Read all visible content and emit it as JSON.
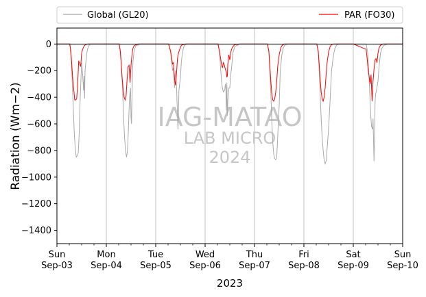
{
  "chart_data": {
    "type": "line",
    "ylabel": "Radiation (Wm−2)",
    "xlabel": "2023",
    "ylim": [
      -1500,
      120
    ],
    "xlim": [
      0,
      7
    ],
    "yticks": [
      0,
      -200,
      -400,
      -600,
      -800,
      -1000,
      -1200,
      -1400
    ],
    "x_ticks": [
      {
        "x": 0,
        "day": "Sun",
        "date": "Sep-03"
      },
      {
        "x": 1,
        "day": "Mon",
        "date": "Sep-04"
      },
      {
        "x": 2,
        "day": "Tue",
        "date": "Sep-05"
      },
      {
        "x": 3,
        "day": "Wed",
        "date": "Sep-06"
      },
      {
        "x": 4,
        "day": "Thu",
        "date": "Sep-07"
      },
      {
        "x": 5,
        "day": "Fri",
        "date": "Sep-08"
      },
      {
        "x": 6,
        "day": "Sat",
        "date": "Sep-09"
      },
      {
        "x": 7,
        "day": "Sun",
        "date": "Sep-10"
      }
    ],
    "grid": "x-major",
    "legend_placement": "top (above plot)",
    "watermark": [
      "IAG-MATAO",
      "LAB MICRO",
      "2024"
    ],
    "series": [
      {
        "name": "Global (GL20)",
        "color": "#a9a9a9",
        "x": [
          0.0,
          0.26,
          0.29,
          0.31,
          0.33,
          0.35,
          0.37,
          0.39,
          0.41,
          0.43,
          0.45,
          0.47,
          0.5,
          0.52,
          0.54,
          0.55,
          0.56,
          0.57,
          0.6,
          0.62,
          0.64,
          0.66,
          0.69,
          0.74,
          1.0,
          1.26,
          1.29,
          1.31,
          1.33,
          1.35,
          1.37,
          1.39,
          1.41,
          1.43,
          1.45,
          1.47,
          1.49,
          1.5,
          1.51,
          1.52,
          1.53,
          1.54,
          1.56,
          1.58,
          1.6,
          1.62,
          1.65,
          1.7,
          2.0,
          2.26,
          2.3,
          2.32,
          2.34,
          2.36,
          2.38,
          2.4,
          2.42,
          2.44,
          2.45,
          2.46,
          2.47,
          2.5,
          2.52,
          2.54,
          2.56,
          2.58,
          2.6,
          2.62,
          2.65,
          2.7,
          3.0,
          3.26,
          3.29,
          3.31,
          3.33,
          3.35,
          3.37,
          3.39,
          3.4,
          3.41,
          3.42,
          3.43,
          3.44,
          3.45,
          3.46,
          3.48,
          3.5,
          3.52,
          3.54,
          3.56,
          3.6,
          3.7,
          4.0,
          4.26,
          4.29,
          4.31,
          4.33,
          4.35,
          4.37,
          4.39,
          4.41,
          4.43,
          4.45,
          4.47,
          4.5,
          4.52,
          4.55,
          4.58,
          4.62,
          4.7,
          5.0,
          5.26,
          5.29,
          5.31,
          5.33,
          5.35,
          5.37,
          5.39,
          5.41,
          5.43,
          5.45,
          5.47,
          5.5,
          5.53,
          5.56,
          5.6,
          5.63,
          5.66,
          5.7,
          6.0,
          6.26,
          6.29,
          6.31,
          6.33,
          6.35,
          6.37,
          6.39,
          6.4,
          6.42,
          6.43,
          6.44,
          6.45,
          6.47,
          6.5,
          6.52,
          6.55,
          6.58,
          6.62,
          6.7,
          7.0
        ],
        "y": [
          0,
          0,
          -120,
          -280,
          -480,
          -660,
          -780,
          -850,
          -840,
          -820,
          -680,
          -420,
          -140,
          -220,
          -350,
          -240,
          -410,
          -200,
          -80,
          -40,
          -15,
          -5,
          0,
          0,
          0,
          0,
          -60,
          -200,
          -360,
          -560,
          -700,
          -810,
          -850,
          -790,
          -610,
          -400,
          -330,
          -550,
          -600,
          -390,
          -200,
          -130,
          -60,
          -30,
          -15,
          -10,
          -5,
          0,
          0,
          0,
          -60,
          -120,
          -200,
          -180,
          -330,
          -200,
          -310,
          -520,
          -640,
          -560,
          -350,
          -250,
          -130,
          -70,
          -30,
          -10,
          -5,
          -3,
          0,
          0,
          0,
          0,
          -60,
          -160,
          -270,
          -330,
          -360,
          -350,
          -340,
          -300,
          -330,
          -500,
          -290,
          -540,
          -430,
          -330,
          -330,
          -230,
          -160,
          -70,
          -20,
          0,
          0,
          0,
          -60,
          -200,
          -370,
          -580,
          -740,
          -830,
          -860,
          -870,
          -850,
          -700,
          -460,
          -220,
          -90,
          -30,
          -5,
          0,
          0,
          0,
          -60,
          -200,
          -380,
          -560,
          -700,
          -800,
          -870,
          -900,
          -880,
          -790,
          -640,
          -420,
          -200,
          -80,
          -30,
          -10,
          0,
          0,
          0,
          -60,
          -180,
          -340,
          -520,
          -620,
          -640,
          -560,
          -880,
          -700,
          -450,
          -380,
          -350,
          -280,
          -180,
          -70,
          -30,
          -10,
          0,
          0
        ]
      },
      {
        "name": "PAR (FO30)",
        "color": "#ff0000",
        "x": [
          0.0,
          0.26,
          0.28,
          0.3,
          0.32,
          0.34,
          0.36,
          0.38,
          0.4,
          0.42,
          0.44,
          0.46,
          0.48,
          0.5,
          0.52,
          0.55,
          0.58,
          0.62,
          0.7,
          1.0,
          1.26,
          1.28,
          1.3,
          1.32,
          1.34,
          1.36,
          1.38,
          1.4,
          1.42,
          1.44,
          1.46,
          1.48,
          1.5,
          1.52,
          1.54,
          1.56,
          1.6,
          1.65,
          1.7,
          2.0,
          2.26,
          2.3,
          2.32,
          2.34,
          2.36,
          2.38,
          2.4,
          2.42,
          2.44,
          2.46,
          2.48,
          2.5,
          2.52,
          2.55,
          2.6,
          2.7,
          3.0,
          3.26,
          3.29,
          3.31,
          3.33,
          3.35,
          3.37,
          3.39,
          3.41,
          3.43,
          3.44,
          3.45,
          3.46,
          3.48,
          3.5,
          3.52,
          3.55,
          3.6,
          3.7,
          4.0,
          4.26,
          4.29,
          4.31,
          4.33,
          4.35,
          4.37,
          4.39,
          4.41,
          4.43,
          4.45,
          4.47,
          4.5,
          4.53,
          4.56,
          4.6,
          4.7,
          5.0,
          5.26,
          5.29,
          5.31,
          5.33,
          5.35,
          5.37,
          5.39,
          5.41,
          5.43,
          5.45,
          5.47,
          5.5,
          5.53,
          5.56,
          5.6,
          5.65,
          5.7,
          6.0,
          6.26,
          6.28,
          6.3,
          6.32,
          6.34,
          6.36,
          6.38,
          6.4,
          6.42,
          6.44,
          6.46,
          6.48,
          6.5,
          6.52,
          6.55,
          6.6,
          6.7,
          7.0
        ],
        "y": [
          0,
          0,
          -50,
          -150,
          -260,
          -340,
          -420,
          -420,
          -410,
          -300,
          -130,
          -140,
          -170,
          -70,
          -40,
          -15,
          -5,
          0,
          0,
          0,
          0,
          -50,
          -140,
          -250,
          -340,
          -400,
          -420,
          -390,
          -270,
          -170,
          -160,
          -290,
          -160,
          -80,
          -30,
          -15,
          -5,
          0,
          0,
          0,
          0,
          -50,
          -100,
          -150,
          -140,
          -260,
          -310,
          -230,
          -110,
          -70,
          -45,
          -25,
          -10,
          -5,
          0,
          0,
          0,
          0,
          -50,
          -100,
          -150,
          -180,
          -140,
          -160,
          -190,
          -210,
          -250,
          -240,
          -150,
          -80,
          -120,
          -60,
          -25,
          -5,
          0,
          0,
          0,
          -50,
          -160,
          -280,
          -370,
          -420,
          -430,
          -410,
          -360,
          -280,
          -170,
          -80,
          -30,
          -10,
          0,
          0,
          0,
          0,
          -50,
          -150,
          -270,
          -360,
          -410,
          -430,
          -400,
          -330,
          -230,
          -140,
          -60,
          -20,
          -5,
          0,
          0,
          0,
          0,
          -40,
          -110,
          -190,
          -240,
          -300,
          -230,
          -430,
          -280,
          -190,
          -120,
          -110,
          -140,
          -70,
          -30,
          -10,
          0,
          0,
          0
        ]
      }
    ]
  }
}
